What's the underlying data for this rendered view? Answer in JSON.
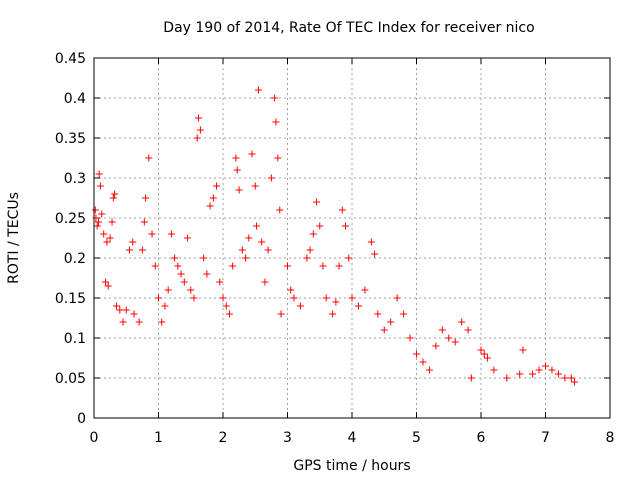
{
  "chart_data": {
    "type": "scatter",
    "title": "Day 190 of 2014, Rate Of TEC Index for receiver nico",
    "xlabel": "GPS time / hours",
    "ylabel": "ROTI / TECUs",
    "xlim": [
      0,
      8
    ],
    "ylim": [
      0,
      0.45
    ],
    "xticks": [
      "0",
      "1",
      "2",
      "3",
      "4",
      "5",
      "6",
      "7",
      "8"
    ],
    "yticks": [
      "0",
      "0.05",
      "0.1",
      "0.15",
      "0.2",
      "0.25",
      "0.3",
      "0.35",
      "0.4",
      "0.45"
    ],
    "grid": true,
    "marker": "+",
    "color": "#ff0000",
    "series": [
      {
        "name": "ROTI",
        "points": [
          [
            0.02,
            0.26
          ],
          [
            0.03,
            0.25
          ],
          [
            0.05,
            0.24
          ],
          [
            0.07,
            0.245
          ],
          [
            0.08,
            0.305
          ],
          [
            0.1,
            0.29
          ],
          [
            0.12,
            0.255
          ],
          [
            0.15,
            0.23
          ],
          [
            0.18,
            0.17
          ],
          [
            0.2,
            0.22
          ],
          [
            0.22,
            0.165
          ],
          [
            0.25,
            0.225
          ],
          [
            0.28,
            0.245
          ],
          [
            0.3,
            0.275
          ],
          [
            0.32,
            0.28
          ],
          [
            0.35,
            0.14
          ],
          [
            0.4,
            0.135
          ],
          [
            0.45,
            0.12
          ],
          [
            0.5,
            0.135
          ],
          [
            0.55,
            0.21
          ],
          [
            0.6,
            0.22
          ],
          [
            0.62,
            0.13
          ],
          [
            0.7,
            0.12
          ],
          [
            0.75,
            0.21
          ],
          [
            0.78,
            0.245
          ],
          [
            0.8,
            0.275
          ],
          [
            0.85,
            0.325
          ],
          [
            0.9,
            0.23
          ],
          [
            0.95,
            0.19
          ],
          [
            1.0,
            0.15
          ],
          [
            1.05,
            0.12
          ],
          [
            1.1,
            0.14
          ],
          [
            1.15,
            0.16
          ],
          [
            1.2,
            0.23
          ],
          [
            1.25,
            0.2
          ],
          [
            1.3,
            0.19
          ],
          [
            1.35,
            0.18
          ],
          [
            1.4,
            0.17
          ],
          [
            1.45,
            0.225
          ],
          [
            1.5,
            0.16
          ],
          [
            1.55,
            0.15
          ],
          [
            1.6,
            0.35
          ],
          [
            1.62,
            0.375
          ],
          [
            1.65,
            0.36
          ],
          [
            1.7,
            0.2
          ],
          [
            1.75,
            0.18
          ],
          [
            1.8,
            0.265
          ],
          [
            1.85,
            0.275
          ],
          [
            1.9,
            0.29
          ],
          [
            1.95,
            0.17
          ],
          [
            2.0,
            0.15
          ],
          [
            2.05,
            0.14
          ],
          [
            2.1,
            0.13
          ],
          [
            2.15,
            0.19
          ],
          [
            2.2,
            0.325
          ],
          [
            2.22,
            0.31
          ],
          [
            2.25,
            0.285
          ],
          [
            2.3,
            0.21
          ],
          [
            2.35,
            0.2
          ],
          [
            2.4,
            0.225
          ],
          [
            2.45,
            0.33
          ],
          [
            2.5,
            0.29
          ],
          [
            2.52,
            0.24
          ],
          [
            2.55,
            0.41
          ],
          [
            2.6,
            0.22
          ],
          [
            2.65,
            0.17
          ],
          [
            2.7,
            0.21
          ],
          [
            2.75,
            0.3
          ],
          [
            2.8,
            0.4
          ],
          [
            2.82,
            0.37
          ],
          [
            2.85,
            0.325
          ],
          [
            2.88,
            0.26
          ],
          [
            2.9,
            0.13
          ],
          [
            3.0,
            0.19
          ],
          [
            3.05,
            0.16
          ],
          [
            3.1,
            0.15
          ],
          [
            3.2,
            0.14
          ],
          [
            3.3,
            0.2
          ],
          [
            3.35,
            0.21
          ],
          [
            3.4,
            0.23
          ],
          [
            3.45,
            0.27
          ],
          [
            3.5,
            0.24
          ],
          [
            3.55,
            0.19
          ],
          [
            3.6,
            0.15
          ],
          [
            3.7,
            0.13
          ],
          [
            3.75,
            0.145
          ],
          [
            3.8,
            0.19
          ],
          [
            3.85,
            0.26
          ],
          [
            3.9,
            0.24
          ],
          [
            3.95,
            0.2
          ],
          [
            4.0,
            0.15
          ],
          [
            4.1,
            0.14
          ],
          [
            4.2,
            0.16
          ],
          [
            4.3,
            0.22
          ],
          [
            4.35,
            0.205
          ],
          [
            4.4,
            0.13
          ],
          [
            4.5,
            0.11
          ],
          [
            4.6,
            0.12
          ],
          [
            4.7,
            0.15
          ],
          [
            4.8,
            0.13
          ],
          [
            4.9,
            0.1
          ],
          [
            5.0,
            0.08
          ],
          [
            5.1,
            0.07
          ],
          [
            5.2,
            0.06
          ],
          [
            5.3,
            0.09
          ],
          [
            5.4,
            0.11
          ],
          [
            5.5,
            0.1
          ],
          [
            5.6,
            0.095
          ],
          [
            5.7,
            0.12
          ],
          [
            5.8,
            0.11
          ],
          [
            5.85,
            0.05
          ],
          [
            6.0,
            0.085
          ],
          [
            6.05,
            0.08
          ],
          [
            6.1,
            0.075
          ],
          [
            6.2,
            0.06
          ],
          [
            6.4,
            0.05
          ],
          [
            6.6,
            0.055
          ],
          [
            6.65,
            0.085
          ],
          [
            6.8,
            0.055
          ],
          [
            6.9,
            0.06
          ],
          [
            7.0,
            0.065
          ],
          [
            7.1,
            0.06
          ],
          [
            7.2,
            0.055
          ],
          [
            7.3,
            0.05
          ],
          [
            7.4,
            0.05
          ],
          [
            7.45,
            0.045
          ]
        ]
      }
    ]
  }
}
